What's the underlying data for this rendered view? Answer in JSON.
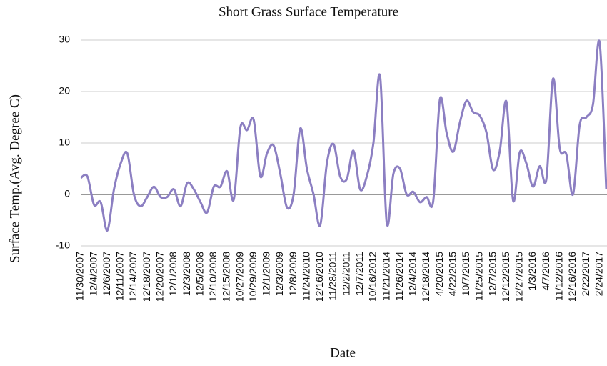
{
  "chart_data": {
    "type": "line",
    "title": "Short Grass Surface Temperature",
    "x_label": "Date",
    "y_label": "Surface Temp.(Avg. Degree C)",
    "categories": [
      "11/30/2007",
      null,
      "12/4/2007",
      null,
      "12/6/2007",
      null,
      "12/11/2007",
      null,
      "12/14/2007",
      null,
      "12/18/2007",
      null,
      "12/20/2007",
      null,
      "12/1/2008",
      null,
      "12/3/2008",
      null,
      "12/5/2008",
      null,
      "12/10/2008",
      null,
      "12/15/2008",
      null,
      "10/27/2009",
      null,
      "10/29/2009",
      null,
      "12/1/2009",
      null,
      "12/3/2009",
      null,
      "12/8/2009",
      null,
      "11/24/2010",
      null,
      "12/16/2010",
      null,
      "11/28/2011",
      null,
      "12/2/2011",
      null,
      "12/7/2011",
      null,
      "10/16/2012",
      null,
      "11/21/2014",
      null,
      "11/26/2014",
      null,
      "12/4/2014",
      null,
      "12/18/2014",
      null,
      "4/20/2015",
      null,
      "4/22/2015",
      null,
      "10/7/2015",
      null,
      "11/25/2015",
      null,
      "12/7/2015",
      null,
      "12/12/2015",
      null,
      "12/27/2015",
      null,
      "1/3/2016",
      null,
      "4/7/2016",
      null,
      "11/12/2016",
      null,
      "12/16/2016",
      null,
      "2/22/2017",
      null,
      "2/24/2017",
      null
    ],
    "series": [
      {
        "name": "Surface Temp.(Avg. Degree C)",
        "color": "#8c7fc2",
        "values": [
          3.2,
          3.5,
          -2,
          -1.5,
          -7,
          1,
          6,
          8,
          0,
          -2.3,
          -0.5,
          1.5,
          -0.5,
          -0.5,
          1,
          -2.3,
          2.2,
          1,
          -1.5,
          -3.5,
          1.5,
          1.5,
          4.5,
          -1,
          13,
          12.5,
          14.5,
          3.5,
          8,
          9.5,
          4,
          -2.5,
          0,
          12.8,
          5,
          0,
          -6,
          6,
          9.8,
          3.5,
          3,
          8.5,
          1,
          3.5,
          10,
          23,
          -5.5,
          4,
          5,
          0,
          0.5,
          -1.5,
          -0.5,
          -1.2,
          18.5,
          12,
          8.3,
          14,
          18.2,
          16,
          15.3,
          12,
          4.8,
          8.5,
          18,
          -1.2,
          8.2,
          6,
          1.5,
          5.5,
          3,
          22.5,
          9,
          7.8,
          0,
          13.5,
          15,
          17.5,
          29.5,
          1
        ]
      }
    ],
    "ylim": [
      -10,
      30
    ],
    "yticks": [
      -10,
      0,
      10,
      20,
      30
    ],
    "grid": true
  }
}
